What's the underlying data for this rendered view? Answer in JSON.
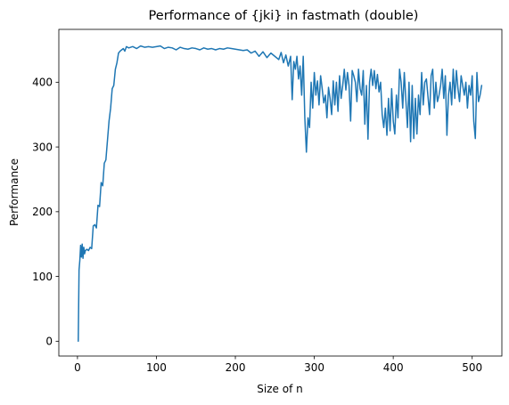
{
  "chart_data": {
    "type": "line",
    "title": "Performance of {jki} in fastmath (double)",
    "xlabel": "Size of n",
    "ylabel": "Performance",
    "xlim": [
      -23.6,
      537.6
    ],
    "ylim": [
      -22.9,
      481.6
    ],
    "xticks": [
      0,
      100,
      200,
      300,
      400,
      500
    ],
    "yticks": [
      0,
      100,
      200,
      300,
      400
    ],
    "grid": false,
    "line_color": "#1f77b4",
    "series": [
      {
        "x": [
          1,
          2,
          3,
          4,
          5,
          6,
          7,
          8,
          9,
          10,
          12,
          14,
          16,
          18,
          20,
          22,
          24,
          26,
          28,
          30,
          32,
          34,
          36,
          38,
          40,
          42,
          44,
          46,
          48,
          50,
          52,
          54,
          56,
          58,
          60,
          62,
          65,
          70,
          75,
          80,
          85,
          90,
          95,
          100,
          105,
          110,
          115,
          120,
          125,
          130,
          135,
          140,
          145,
          150,
          155,
          160,
          165,
          170,
          175,
          180,
          185,
          190,
          195,
          200,
          205,
          210,
          215,
          220,
          225,
          230,
          235,
          240,
          245,
          250,
          255,
          258,
          261,
          264,
          267,
          270,
          272,
          274,
          276,
          278,
          280,
          282,
          284,
          286,
          288,
          290,
          292,
          294,
          296,
          298,
          300,
          302,
          304,
          306,
          308,
          310,
          312,
          314,
          316,
          318,
          320,
          322,
          324,
          326,
          328,
          330,
          332,
          334,
          336,
          338,
          340,
          342,
          344,
          346,
          348,
          350,
          352,
          354,
          356,
          358,
          360,
          362,
          364,
          366,
          368,
          370,
          372,
          374,
          376,
          378,
          380,
          382,
          384,
          386,
          388,
          390,
          392,
          394,
          396,
          398,
          400,
          402,
          404,
          406,
          408,
          410,
          412,
          414,
          416,
          418,
          420,
          422,
          424,
          426,
          428,
          430,
          432,
          434,
          436,
          438,
          440,
          442,
          444,
          446,
          448,
          450,
          452,
          454,
          456,
          458,
          460,
          462,
          464,
          466,
          468,
          470,
          472,
          474,
          476,
          478,
          480,
          482,
          484,
          486,
          488,
          490,
          492,
          494,
          496,
          498,
          500,
          502,
          504,
          506,
          508,
          510,
          512
        ],
        "y": [
          0,
          110,
          125,
          148,
          130,
          150,
          128,
          145,
          135,
          140,
          142,
          140,
          145,
          143,
          178,
          180,
          175,
          210,
          208,
          245,
          240,
          275,
          280,
          310,
          340,
          360,
          390,
          395,
          420,
          430,
          445,
          448,
          450,
          452,
          448,
          455,
          453,
          455,
          452,
          456,
          454,
          455,
          454,
          455,
          456,
          452,
          454,
          453,
          450,
          454,
          452,
          451,
          453,
          452,
          450,
          453,
          451,
          452,
          450,
          452,
          451,
          453,
          452,
          451,
          450,
          449,
          450,
          445,
          448,
          440,
          447,
          438,
          445,
          440,
          435,
          446,
          430,
          442,
          425,
          440,
          373,
          432,
          420,
          440,
          405,
          425,
          380,
          440,
          345,
          292,
          345,
          330,
          400,
          360,
          415,
          380,
          402,
          365,
          410,
          390,
          368,
          380,
          345,
          392,
          375,
          350,
          402,
          365,
          400,
          355,
          410,
          375,
          395,
          420,
          388,
          415,
          395,
          340,
          418,
          410,
          400,
          370,
          420,
          390,
          380,
          418,
          335,
          395,
          312,
          400,
          420,
          395,
          418,
          390,
          412,
          385,
          400,
          350,
          330,
          360,
          318,
          375,
          325,
          390,
          340,
          320,
          380,
          345,
          420,
          400,
          360,
          415,
          372,
          330,
          400,
          308,
          395,
          313,
          375,
          320,
          380,
          350,
          415,
          365,
          400,
          405,
          378,
          350,
          410,
          420,
          360,
          400,
          370,
          380,
          395,
          420,
          375,
          410,
          318,
          380,
          400,
          365,
          420,
          375,
          418,
          390,
          370,
          410,
          395,
          380,
          400,
          360,
          395,
          380,
          410,
          340,
          313,
          415,
          370,
          380,
          395
        ]
      }
    ]
  }
}
